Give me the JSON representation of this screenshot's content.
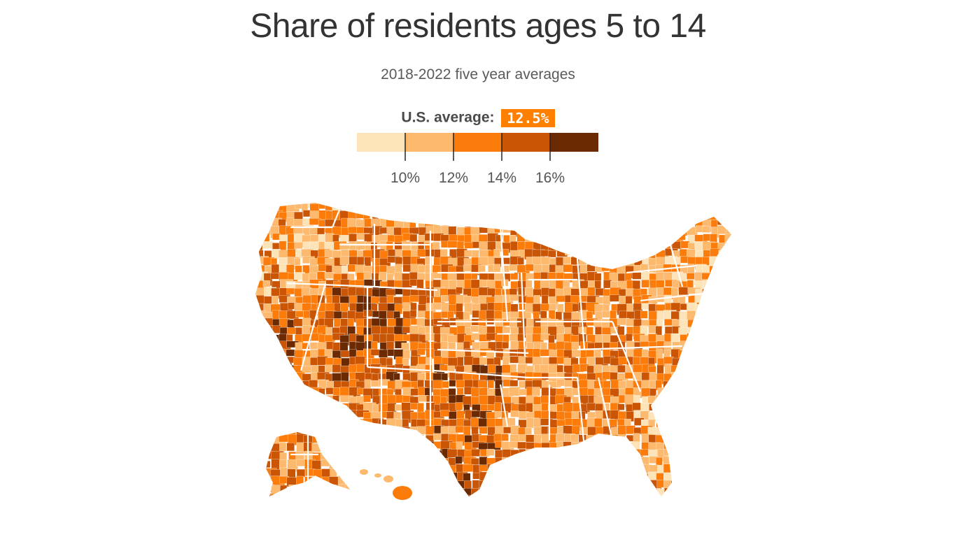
{
  "title": "Share of residents ages 5 to 14",
  "subtitle": "2018-2022 five year averages",
  "average": {
    "label": "U.S. average:",
    "value": "12.5%"
  },
  "legend": {
    "colors": [
      "#fde3b8",
      "#fdb96d",
      "#fb7c0a",
      "#c95505",
      "#6b2a02"
    ],
    "thresholds": [
      10,
      12,
      14,
      16
    ],
    "tick_labels": [
      "10%",
      "12%",
      "14%",
      "16%"
    ]
  },
  "map": {
    "subject": "counties of the United States shaded by share of residents ages 5 to 14"
  }
}
